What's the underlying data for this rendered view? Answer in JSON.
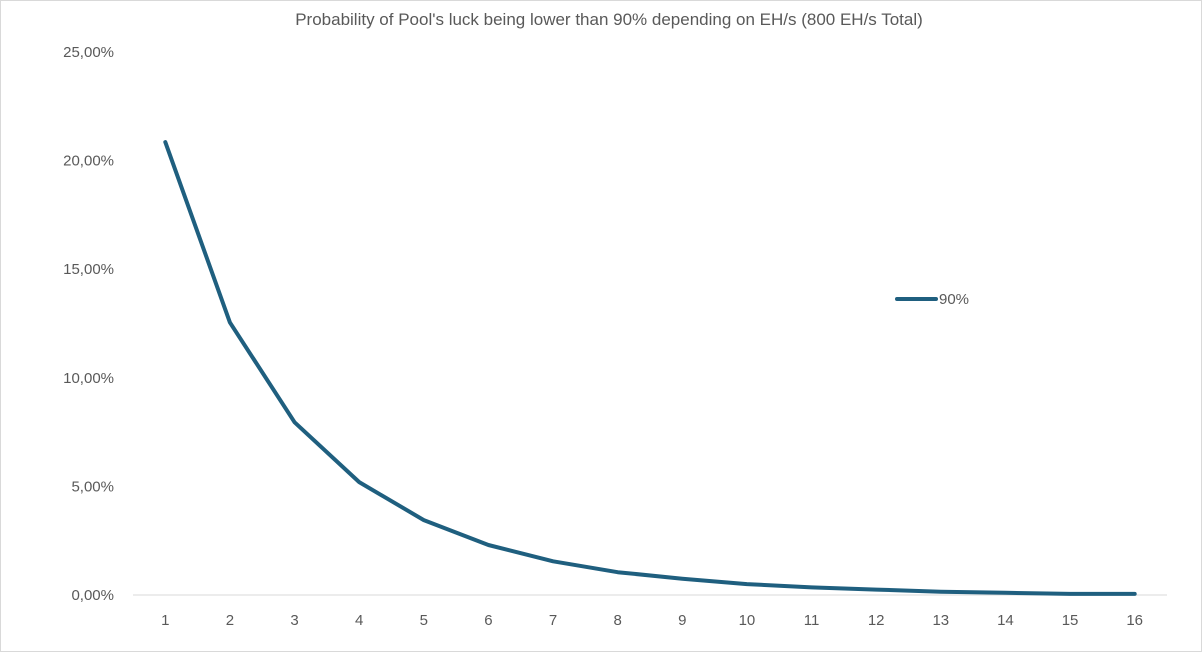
{
  "chart_data": {
    "type": "line",
    "title": "Probability of Pool's luck being lower than 90% depending on EH/s (800 EH/s Total)",
    "xlabel": "",
    "ylabel": "",
    "x": [
      1,
      2,
      3,
      4,
      5,
      6,
      7,
      8,
      9,
      10,
      11,
      12,
      13,
      14,
      15,
      16
    ],
    "ylim": [
      0,
      25
    ],
    "yticks": [
      0,
      5,
      10,
      15,
      20,
      25
    ],
    "ytick_labels": [
      "0,00%",
      "5,00%",
      "10,00%",
      "15,00%",
      "20,00%",
      "25,00%"
    ],
    "grid": false,
    "legend_position": "right",
    "series": [
      {
        "name": "90%",
        "color": "#1f5f7f",
        "values": [
          20.85,
          12.55,
          7.95,
          5.2,
          3.45,
          2.3,
          1.55,
          1.05,
          0.75,
          0.5,
          0.35,
          0.25,
          0.15,
          0.1,
          0.05,
          0.05
        ]
      }
    ]
  }
}
